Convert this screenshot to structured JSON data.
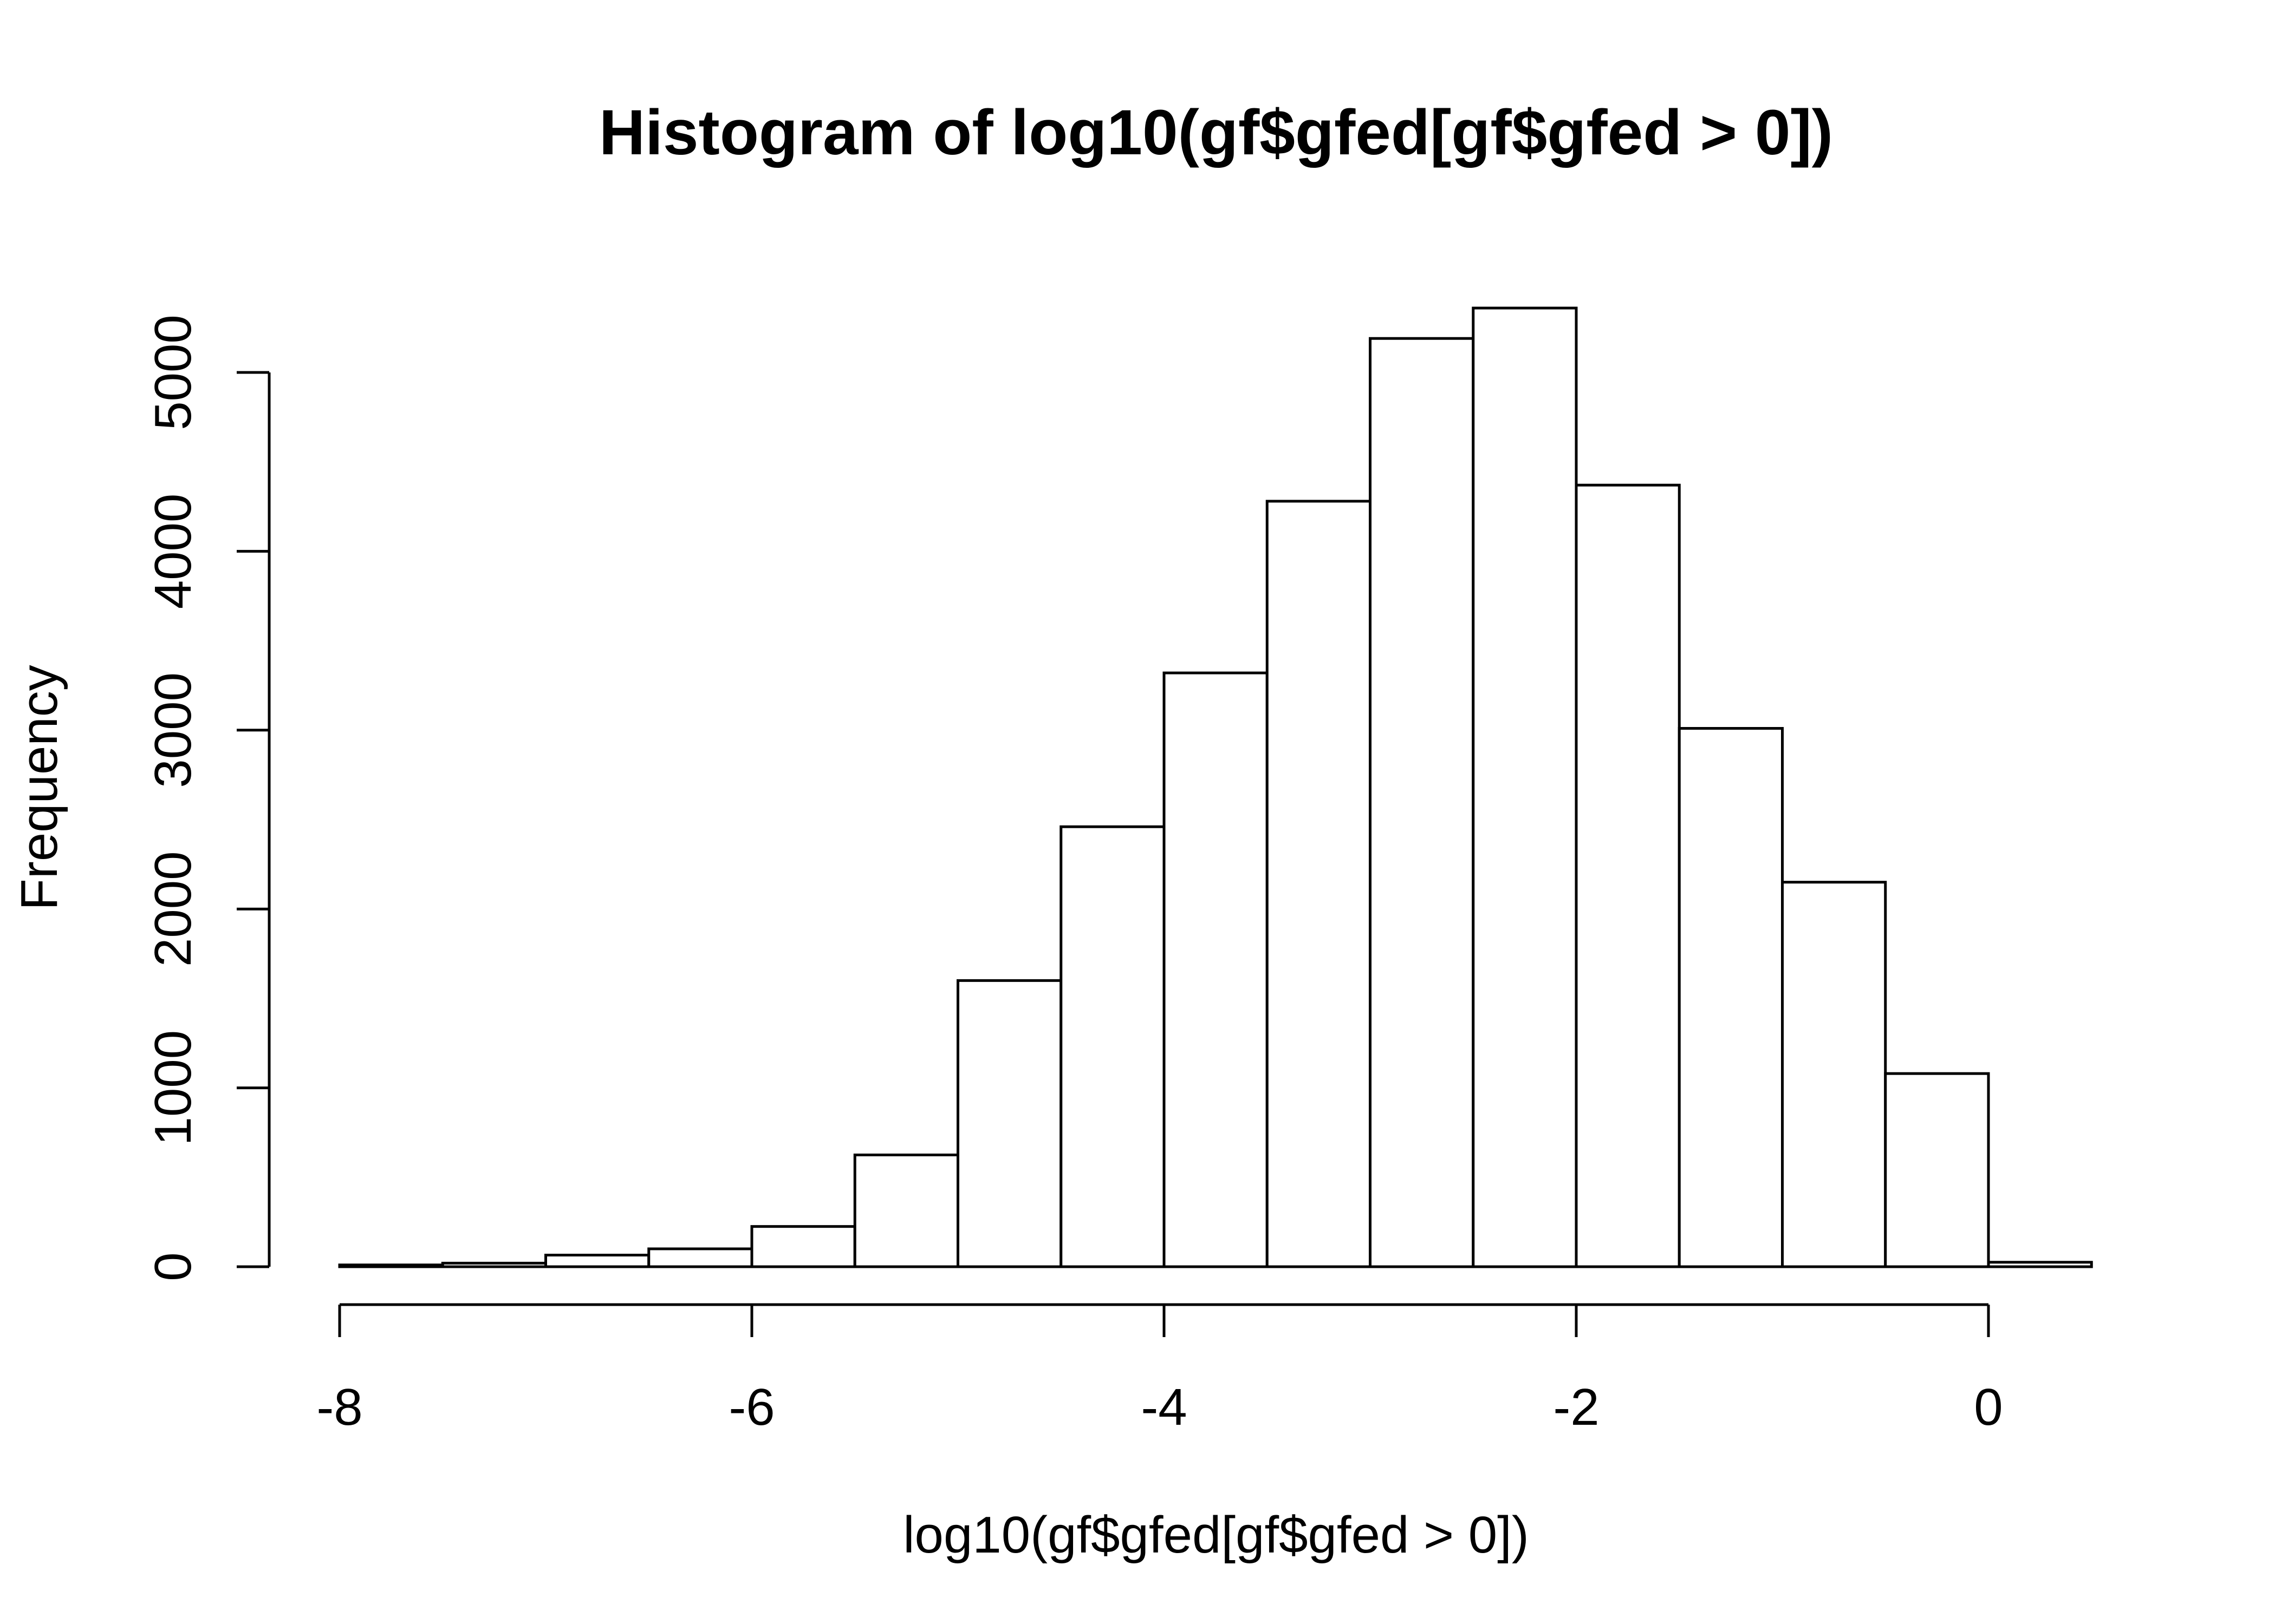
{
  "chart_data": {
    "type": "bar",
    "title": "Histogram of log10(gf$gfed[gf$gfed > 0])",
    "xlabel": "log10(gf$gfed[gf$gfed > 0])",
    "ylabel": "Frequency",
    "xlim": [
      -8,
      0.5
    ],
    "ylim": [
      0,
      5300
    ],
    "grid": false,
    "bin_edges": [
      -8,
      -7.5,
      -7,
      -6.5,
      -6,
      -5.5,
      -5,
      -4.5,
      -4,
      -3.5,
      -3,
      -2.5,
      -2,
      -1.5,
      -1,
      -0.5,
      0,
      0.5
    ],
    "values": [
      10,
      20,
      65,
      100,
      225,
      625,
      1600,
      2460,
      3320,
      4280,
      5190,
      5360,
      4370,
      3010,
      2150,
      1080,
      25
    ],
    "x_ticks": [
      -8,
      -6,
      -4,
      -2,
      0
    ],
    "x_tick_labels": [
      "-8",
      "-6",
      "-4",
      "-2",
      "0"
    ],
    "y_ticks": [
      0,
      1000,
      2000,
      3000,
      4000,
      5000
    ],
    "y_tick_labels": [
      "0",
      "1000",
      "2000",
      "3000",
      "4000",
      "5000"
    ]
  }
}
